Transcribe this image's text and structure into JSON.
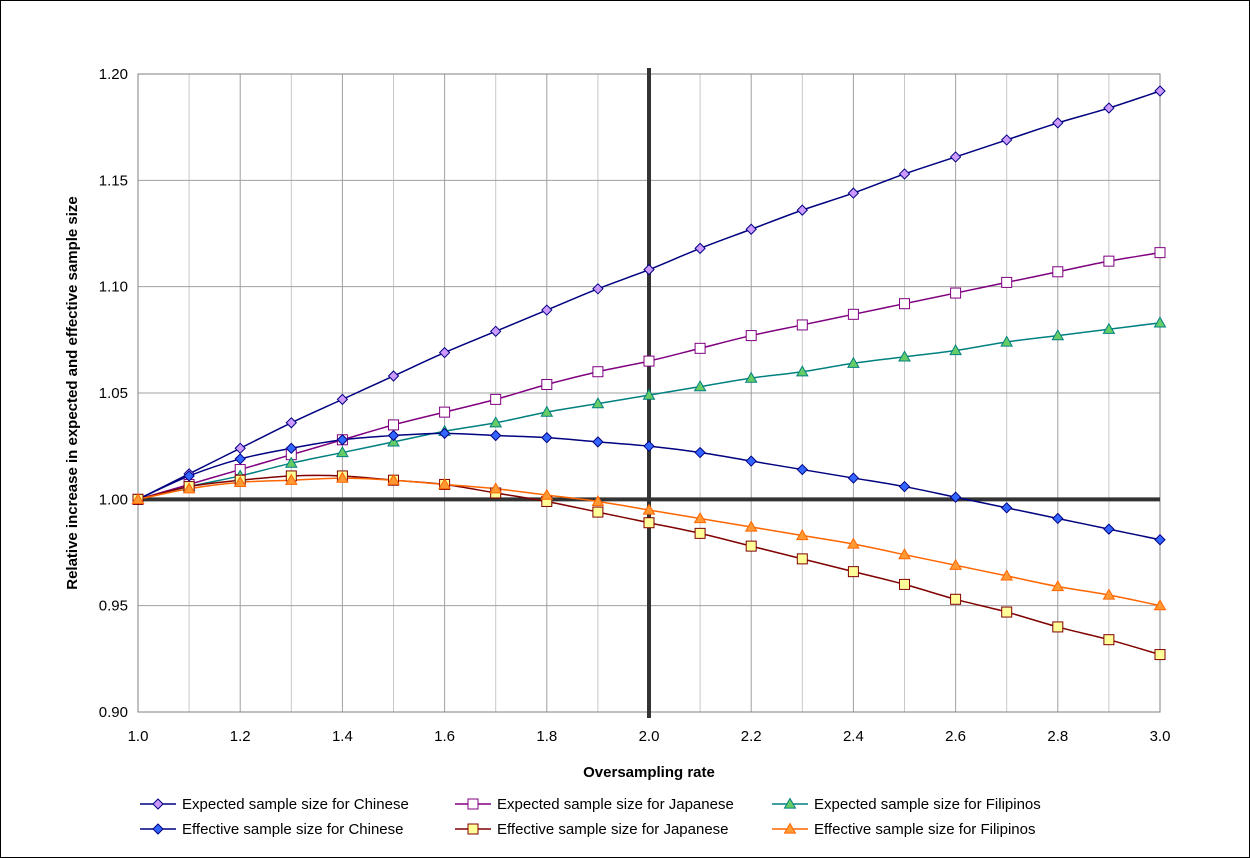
{
  "chart_data": {
    "type": "line",
    "title": "",
    "xlabel": "Oversampling rate",
    "ylabel": "Relative increase in expected and effective sample size",
    "xlim": [
      1.0,
      3.0
    ],
    "ylim": [
      0.9,
      1.2
    ],
    "x_ticks": [
      "1.0",
      "1.2",
      "1.4",
      "1.6",
      "1.8",
      "2.0",
      "2.2",
      "2.4",
      "2.6",
      "2.8",
      "3.0"
    ],
    "y_ticks": [
      "0.90",
      "0.95",
      "1.00",
      "1.05",
      "1.10",
      "1.15",
      "1.20"
    ],
    "grid": true,
    "reference_lines": {
      "y": 1.0,
      "x": 2.0
    },
    "legend_position": "bottom",
    "x": [
      1.0,
      1.1,
      1.2,
      1.3,
      1.4,
      1.5,
      1.6,
      1.7,
      1.8,
      1.9,
      2.0,
      2.1,
      2.2,
      2.3,
      2.4,
      2.5,
      2.6,
      2.7,
      2.8,
      2.9,
      3.0
    ],
    "series": [
      {
        "name": "Expected sample size for Chinese",
        "color": "#000080",
        "marker": "diamond",
        "marker_fill": "#cc99ff",
        "values": [
          1.0,
          1.012,
          1.024,
          1.036,
          1.047,
          1.058,
          1.069,
          1.079,
          1.089,
          1.099,
          1.108,
          1.118,
          1.127,
          1.136,
          1.144,
          1.153,
          1.161,
          1.169,
          1.177,
          1.184,
          1.192
        ]
      },
      {
        "name": "Expected sample size for Japanese",
        "color": "#800080",
        "marker": "square",
        "marker_fill": "#ffffff",
        "values": [
          1.0,
          1.007,
          1.014,
          1.021,
          1.028,
          1.035,
          1.041,
          1.047,
          1.054,
          1.06,
          1.065,
          1.071,
          1.077,
          1.082,
          1.087,
          1.092,
          1.097,
          1.102,
          1.107,
          1.112,
          1.116
        ]
      },
      {
        "name": "Expected sample size for Filipinos",
        "color": "#008080",
        "marker": "triangle",
        "marker_fill": "#66cc66",
        "values": [
          1.0,
          1.006,
          1.011,
          1.017,
          1.022,
          1.027,
          1.032,
          1.036,
          1.041,
          1.045,
          1.049,
          1.053,
          1.057,
          1.06,
          1.064,
          1.067,
          1.07,
          1.074,
          1.077,
          1.08,
          1.083
        ]
      },
      {
        "name": "Effective sample size for Chinese",
        "color": "#000080",
        "marker": "diamond",
        "marker_fill": "#3366ff",
        "values": [
          1.0,
          1.011,
          1.019,
          1.024,
          1.028,
          1.03,
          1.031,
          1.03,
          1.029,
          1.027,
          1.025,
          1.022,
          1.018,
          1.014,
          1.01,
          1.006,
          1.001,
          0.996,
          0.991,
          0.986,
          0.981
        ]
      },
      {
        "name": "Effective sample size for Japanese",
        "color": "#800000",
        "marker": "square",
        "marker_fill": "#ffff99",
        "values": [
          1.0,
          1.006,
          1.009,
          1.011,
          1.011,
          1.009,
          1.007,
          1.003,
          0.999,
          0.994,
          0.989,
          0.984,
          0.978,
          0.972,
          0.966,
          0.96,
          0.953,
          0.947,
          0.94,
          0.934,
          0.927
        ]
      },
      {
        "name": "Effective sample size for Filipinos",
        "color": "#ff6600",
        "marker": "triangle",
        "marker_fill": "#ff9933",
        "values": [
          1.0,
          1.005,
          1.008,
          1.009,
          1.01,
          1.009,
          1.007,
          1.005,
          1.002,
          0.999,
          0.995,
          0.991,
          0.987,
          0.983,
          0.979,
          0.974,
          0.969,
          0.964,
          0.959,
          0.955,
          0.95
        ]
      }
    ]
  }
}
